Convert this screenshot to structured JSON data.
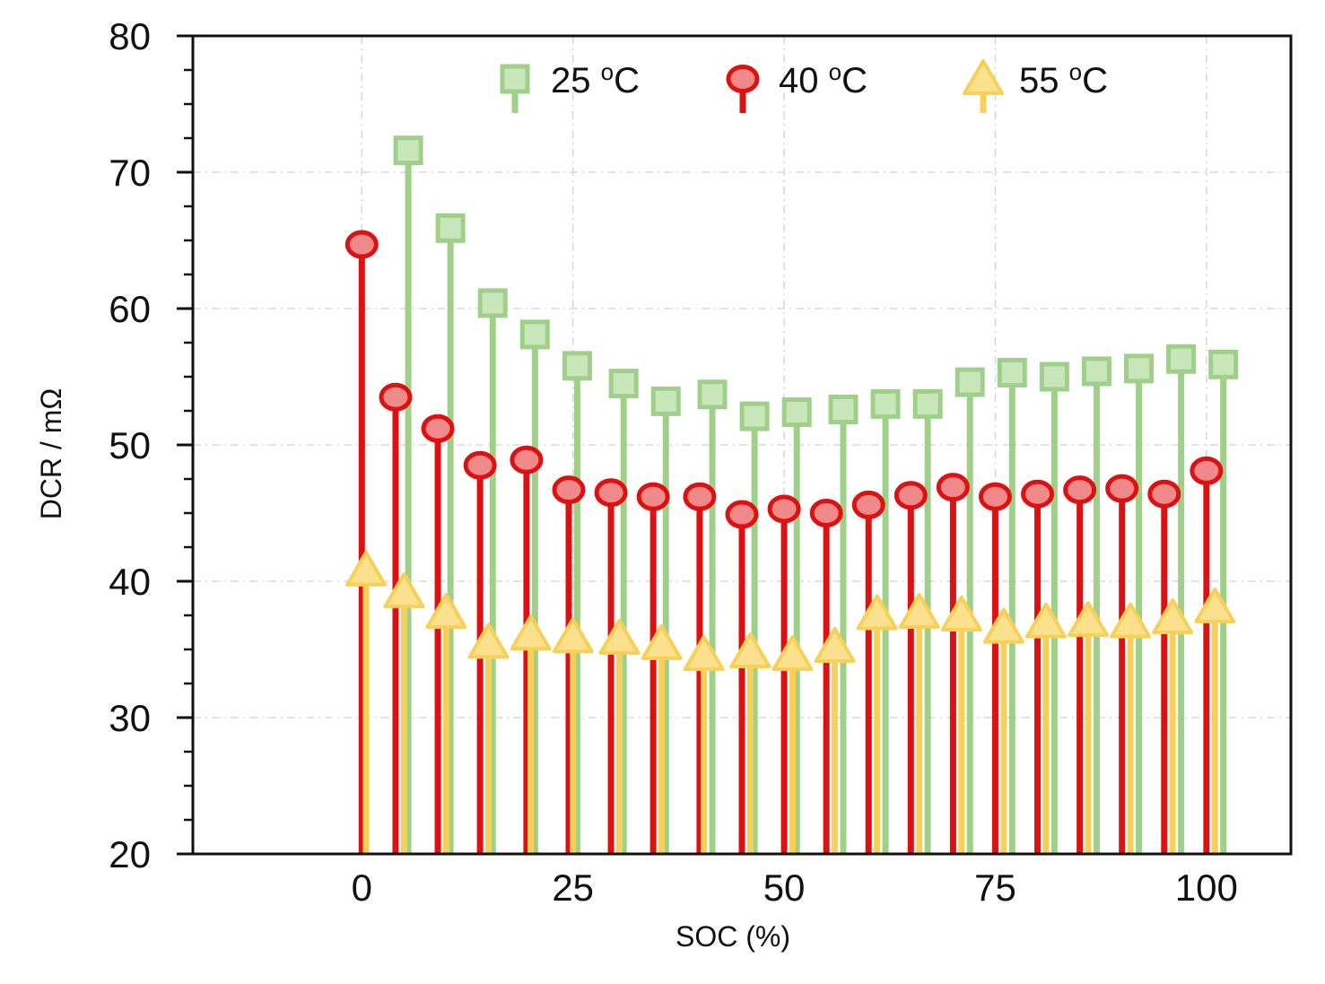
{
  "chart_data": {
    "type": "stem",
    "xlabel": "SOC (%)",
    "ylabel": "DCR / mΩ",
    "xlim": [
      -20,
      110
    ],
    "ylim": [
      20,
      80
    ],
    "xticks": [
      0,
      25,
      50,
      75,
      100
    ],
    "yticks": [
      20,
      30,
      40,
      50,
      60,
      70,
      80
    ],
    "grid": true,
    "legend_position": "top",
    "series": [
      {
        "name": "25 °C",
        "label_value": "25",
        "label_unit": "C",
        "label_degree": "o",
        "color": "#9fd08a",
        "marker": "square",
        "x": [
          5.5,
          10.5,
          15.5,
          20.5,
          25.5,
          31,
          36,
          41.5,
          46.5,
          51.5,
          57,
          62,
          67,
          72,
          77,
          82,
          87,
          92,
          97,
          102
        ],
        "values": [
          71.6,
          65.9,
          60.4,
          58.1,
          55.8,
          54.5,
          53.2,
          53.7,
          52.1,
          52.4,
          52.6,
          53.0,
          53.0,
          54.6,
          55.3,
          55.0,
          55.4,
          55.6,
          56.3,
          55.9
        ]
      },
      {
        "name": "40 °C",
        "label_value": "40",
        "label_unit": "C",
        "label_degree": "o",
        "color": "#dd1111",
        "marker": "circle",
        "x": [
          0,
          4,
          9,
          14,
          19.5,
          24.5,
          29.5,
          34.5,
          40,
          45,
          50,
          55,
          60,
          65,
          70,
          75,
          80,
          85,
          90,
          95,
          100
        ],
        "values": [
          64.7,
          53.5,
          51.2,
          48.5,
          48.9,
          46.7,
          46.5,
          46.2,
          46.2,
          44.9,
          45.3,
          45.0,
          45.6,
          46.3,
          46.9,
          46.2,
          46.4,
          46.7,
          46.8,
          46.4,
          48.1
        ]
      },
      {
        "name": "55 °C",
        "label_value": "55",
        "label_unit": "C",
        "label_degree": "o",
        "color": "#f7d157",
        "marker": "triangle",
        "x": [
          0.5,
          5,
          10,
          15,
          20,
          25,
          30.5,
          35.5,
          40.5,
          46,
          51,
          56,
          61,
          66,
          71,
          76,
          81,
          86,
          91,
          96,
          101
        ],
        "values": [
          40.8,
          39.2,
          37.7,
          35.5,
          36.1,
          35.9,
          35.8,
          35.4,
          34.6,
          34.8,
          34.6,
          35.2,
          37.6,
          37.7,
          37.5,
          36.6,
          37.0,
          37.1,
          37.0,
          37.3,
          38.1
        ]
      }
    ]
  }
}
